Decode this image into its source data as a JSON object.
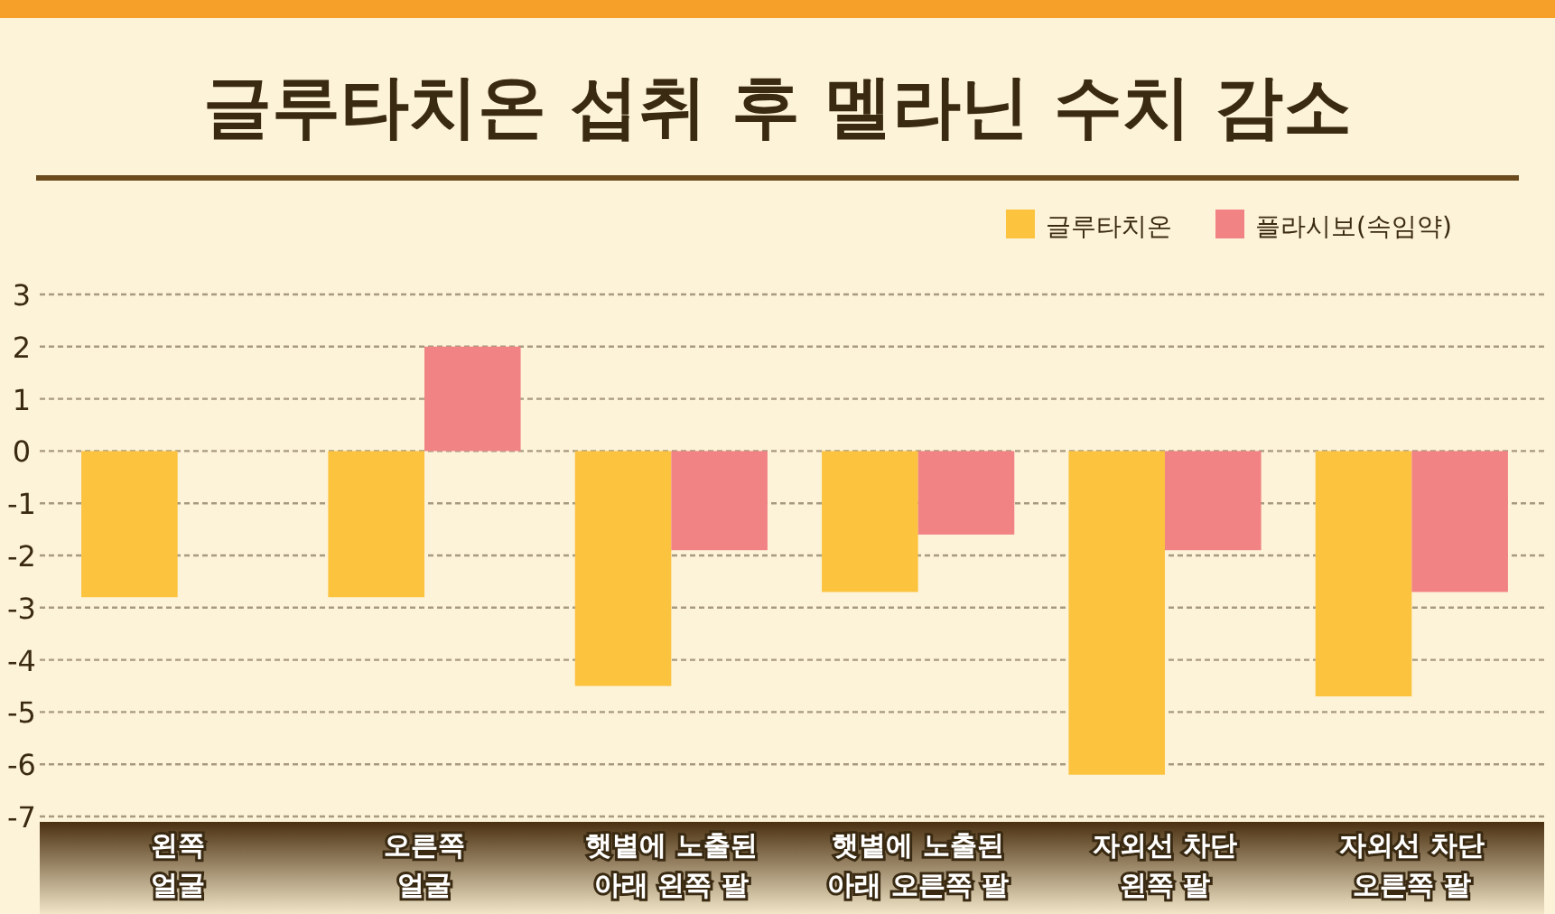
{
  "chart_data": {
    "type": "bar",
    "title": "글루타치온 섭취 후 멜라닌 수치 감소",
    "categories": [
      "왼쪽 얼굴",
      "오른쪽 얼굴",
      "햇볕에 노출된 아래 왼쪽 팔",
      "햇볕에 노출된 아래 오른쪽 팔",
      "자외선 차단 왼쪽 팔",
      "자외선 차단 오른쪽 팔"
    ],
    "series": [
      {
        "name": "글루타치온",
        "color": "#fcc33f",
        "values": [
          -2.8,
          -2.8,
          -4.5,
          -2.7,
          -6.2,
          -4.7
        ]
      },
      {
        "name": "플라시보(속임약)",
        "color": "#f28385",
        "values": [
          null,
          2.0,
          -1.9,
          -1.6,
          -1.9,
          -2.7
        ]
      }
    ],
    "ylim": [
      -7,
      3
    ],
    "yticks": [
      -7,
      -6,
      -5,
      -4,
      -3,
      -2,
      -1,
      0,
      1,
      2,
      3
    ],
    "grid": "y",
    "legend": "top right"
  }
}
